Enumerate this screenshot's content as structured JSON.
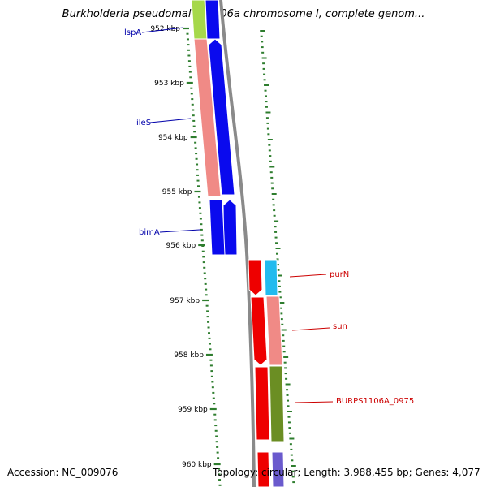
{
  "title": "Burkholderia pseudomallei 1106a chromosome I, complete genom...",
  "footer": {
    "accession": "Accession: NC_009076",
    "summary": "Topology: circular; Length: 3,988,455 bp; Genes: 4,077"
  },
  "colors": {
    "background": "#ffffff",
    "backbone": "#8a8a8a",
    "tick": "#2e7d2e",
    "forward_label": "#0000aa",
    "reverse_label": "#cc0000",
    "blue": "#0a0aee",
    "red": "#ee0000",
    "salmon": "#f08a86",
    "lime": "#a6d84a",
    "cyan": "#22bbee",
    "olive": "#6b8e23",
    "slate": "#6a5acd"
  },
  "axis": {
    "ticks": [
      "952 kbp",
      "953 kbp",
      "954 kbp",
      "955 kbp",
      "956 kbp",
      "957 kbp",
      "958 kbp",
      "959 kbp",
      "960 kbp"
    ]
  },
  "genes": [
    {
      "name": "lspA",
      "side": "left"
    },
    {
      "name": "ileS",
      "side": "left"
    },
    {
      "name": "bimA",
      "side": "left"
    },
    {
      "name": "purN",
      "side": "right"
    },
    {
      "name": "sun",
      "side": "right"
    },
    {
      "name": "BURPS1106A_0975",
      "side": "right"
    }
  ]
}
